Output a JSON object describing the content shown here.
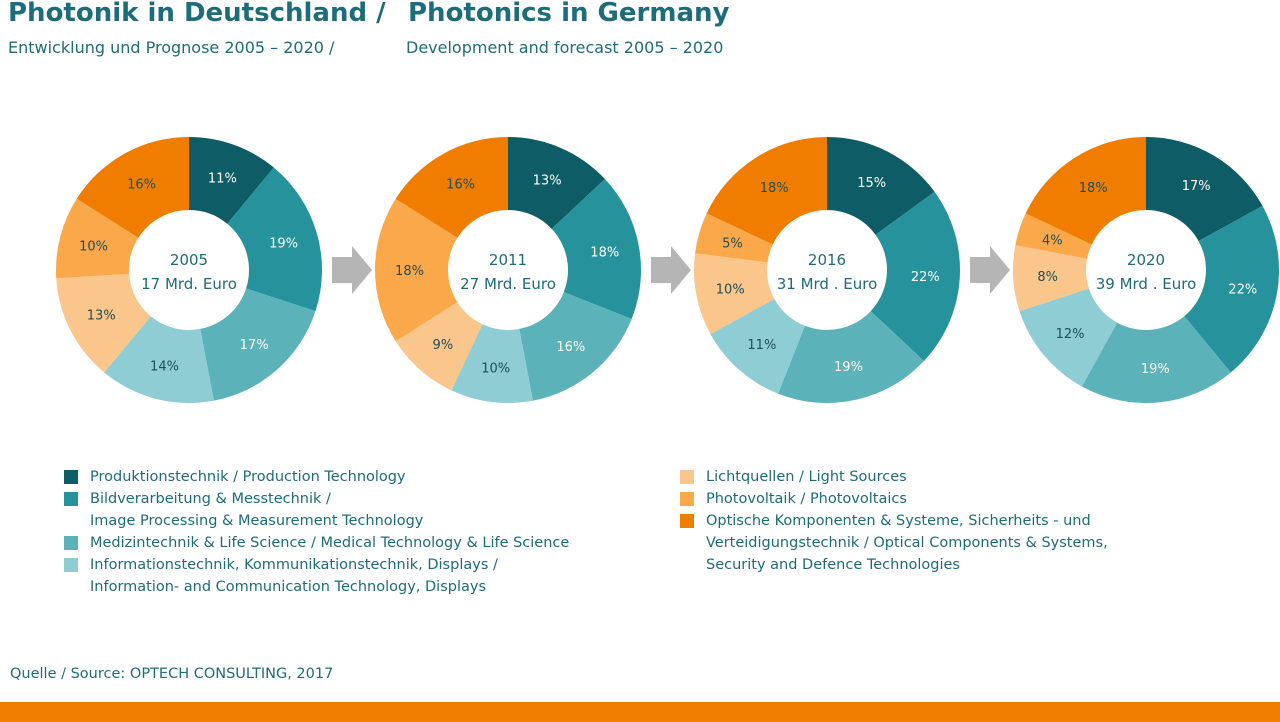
{
  "title": {
    "de": "Photonik in Deutschland /",
    "en": "Photonics in Germany"
  },
  "subtitle": {
    "de": "Entwicklung und Prognose 2005 – 2020 /",
    "en": "Development and forecast 2005 – 2020"
  },
  "source": "Quelle / Source: OPTECH CONSULTING, 2017",
  "legend": {
    "left": [
      {
        "lines": [
          "Produktionstechnik /   Production Technology"
        ],
        "color": "#0e5d66"
      },
      {
        "lines": [
          "Bildverarbeitung & Messtechnik /",
          "Image Processing & Measurement Technology"
        ],
        "color": "#26939c"
      },
      {
        "lines": [
          "Medizintechnik & Life Science /    Medical Technology & Life Science"
        ],
        "color": "#5cb2b9"
      },
      {
        "lines": [
          "Informationstechnik, Kommunikationstechnik, Displays /",
          "Information- and Communication Technology, Displays"
        ],
        "color": "#8ecdd4"
      }
    ],
    "right": [
      {
        "lines": [
          "Lichtquellen /  Light Sources"
        ],
        "color": "#fbc68b"
      },
      {
        "lines": [
          "Photovoltaik /  Photovoltaics"
        ],
        "color": "#fba84a"
      },
      {
        "lines": [
          "Optische Komponenten & Systeme, Sicherheits    - und",
          "Verteidigungstechnik /   Optical Components & Systems,",
          "Security  and Defence Technologies"
        ],
        "color": "#f07d00"
      }
    ]
  },
  "chart_data": [
    {
      "type": "pie",
      "center_label": [
        "2005",
        "17 Mrd. Euro"
      ],
      "categories": [
        "Produktionstechnik",
        "Bildverarbeitung & Messtechnik",
        "Medizintechnik & Life Science",
        "Informationstechnik, Kommunikationstechnik, Displays",
        "Lichtquellen",
        "Photovoltaik",
        "Optische Komponenten & Systeme"
      ],
      "values": [
        11,
        19,
        17,
        14,
        13,
        10,
        16
      ],
      "labels": [
        "11%",
        "19%",
        "17%",
        "14%",
        "13%",
        "10%",
        "16%"
      ]
    },
    {
      "type": "pie",
      "center_label": [
        "2011",
        "27 Mrd.  Euro"
      ],
      "categories": [
        "Produktionstechnik",
        "Bildverarbeitung & Messtechnik",
        "Medizintechnik & Life Science",
        "Informationstechnik, Kommunikationstechnik, Displays",
        "Lichtquellen",
        "Photovoltaik",
        "Optische Komponenten & Systeme"
      ],
      "values": [
        13,
        18,
        16,
        10,
        9,
        18,
        16
      ],
      "labels": [
        "13%",
        "18%",
        "16%",
        "10%",
        "9%",
        "18%",
        "16%"
      ]
    },
    {
      "type": "pie",
      "center_label": [
        "2016",
        "31 Mrd . Euro"
      ],
      "categories": [
        "Produktionstechnik",
        "Bildverarbeitung & Messtechnik",
        "Medizintechnik & Life Science",
        "Informationstechnik, Kommunikationstechnik, Displays",
        "Lichtquellen",
        "Photovoltaik",
        "Optische Komponenten & Systeme"
      ],
      "values": [
        15,
        22,
        19,
        11,
        10,
        5,
        18
      ],
      "labels": [
        "15%",
        "22%",
        "19%",
        "11%",
        "10%",
        "5%",
        "18%"
      ]
    },
    {
      "type": "pie",
      "center_label": [
        "2020",
        "39 Mrd . Euro"
      ],
      "categories": [
        "Produktionstechnik",
        "Bildverarbeitung & Messtechnik",
        "Medizintechnik & Life Science",
        "Informationstechnik, Kommunikationstechnik, Displays",
        "Lichtquellen",
        "Photovoltaik",
        "Optische Komponenten & Systeme"
      ],
      "values": [
        17,
        22,
        19,
        12,
        8,
        4,
        18
      ],
      "labels": [
        "17%",
        "22%",
        "19%",
        "12%",
        "8%",
        "4%",
        "18%"
      ]
    }
  ],
  "colors": {
    "slices": [
      "#0e5d66",
      "#26939c",
      "#5cb2b9",
      "#8ecdd4",
      "#fbc68b",
      "#fba84a",
      "#f07d00"
    ],
    "arrow": "#b5b5b5",
    "footer": "#f07d00"
  }
}
